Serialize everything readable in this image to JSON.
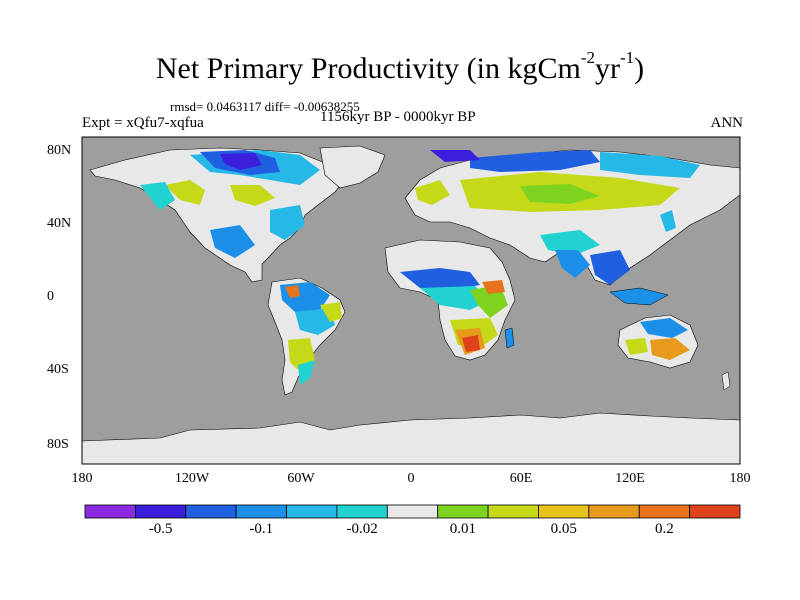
{
  "title": {
    "main": "Net Primary Productivity (in kgCm",
    "sup1": "-2",
    "mid": "yr",
    "sup2": "-1",
    "end": ")"
  },
  "stats": "rmsd= 0.0463117 diff= -0.00638255",
  "experiment": "Expt = xQfu7-xqfua",
  "period": "1156kyr BP - 0000kyr BP",
  "season": "ANN",
  "lat_labels": [
    "80N",
    "40N",
    "0",
    "40S",
    "80S"
  ],
  "lon_labels": [
    "180",
    "120W",
    "60W",
    "0",
    "60E",
    "120E",
    "180"
  ],
  "colorbar": {
    "colors": [
      "#8a2be2",
      "#3a1edc",
      "#1f5fe0",
      "#1c90e8",
      "#26b8e6",
      "#21d2d0",
      "#e8e8e8",
      "#7ed321",
      "#c5d919",
      "#e6c21a",
      "#e89a1c",
      "#e8731c",
      "#e0421b"
    ],
    "labels": [
      "-0.5",
      "-0.1",
      "-0.02",
      "0.01",
      "0.05",
      "0.2"
    ]
  },
  "map_colors": {
    "ocean": "#9e9e9e",
    "ice": "#e8e8e8"
  }
}
